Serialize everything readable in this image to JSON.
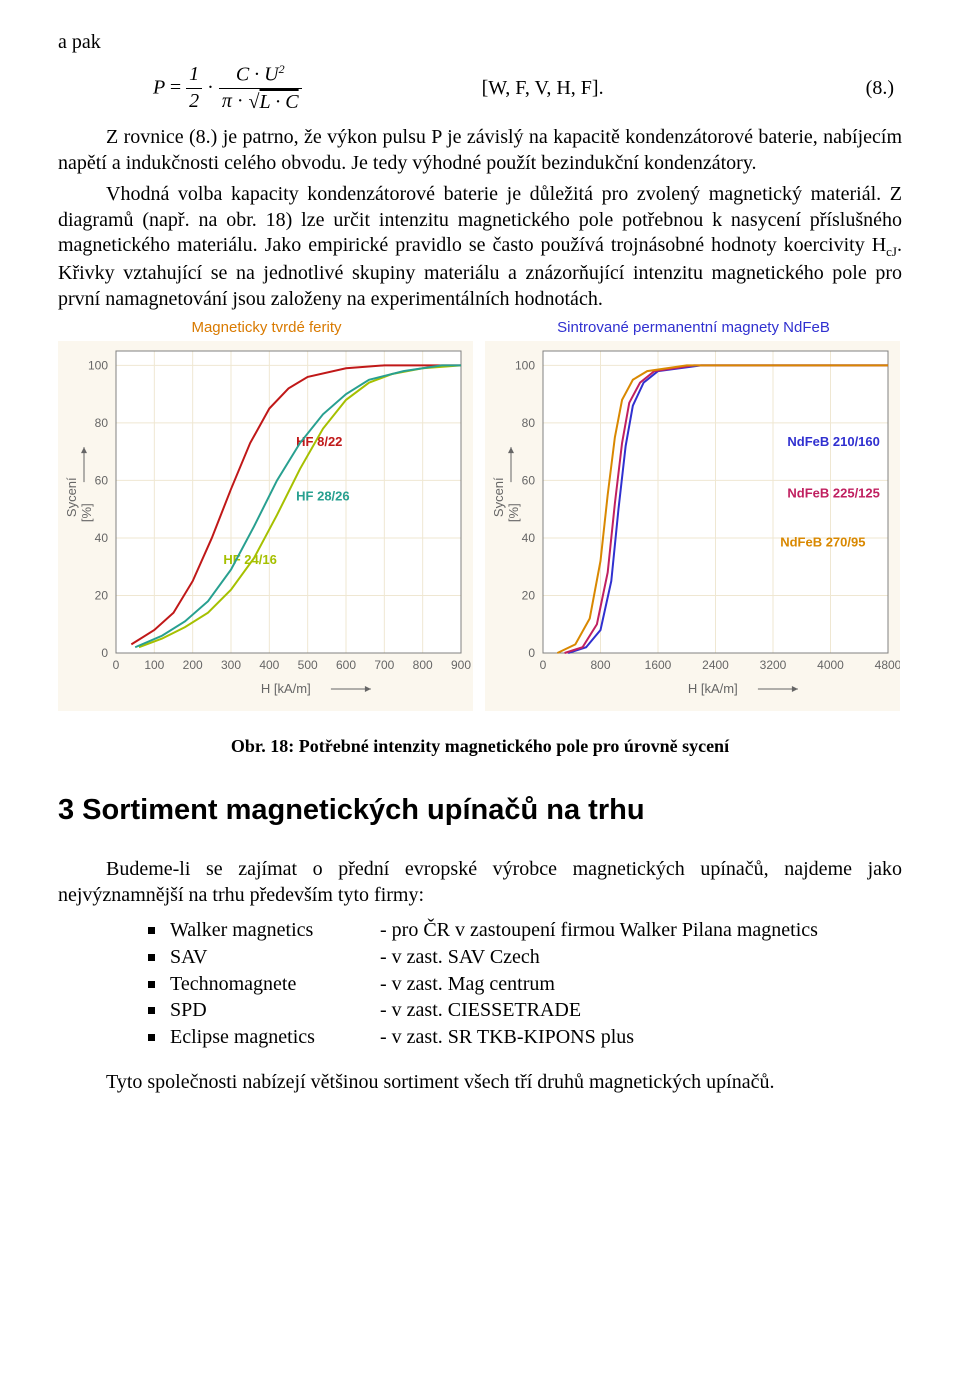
{
  "intro": {
    "apak": "a pak"
  },
  "formula": {
    "lhs": "P",
    "half_num": "1",
    "half_den": "2",
    "rhs_num": "C · U",
    "rhs_exp": "2",
    "rhs_den_pi": "π",
    "rhs_den_sqrt": "L · C",
    "units": "[W, F, V, H, F].",
    "eqnum": "(8.)"
  },
  "para1": "Z rovnice (8.) je patrno, že výkon pulsu P je závislý na kapacitě kondenzátorové baterie, nabíjecím napětí a indukčnosti celého obvodu. Je tedy výhodné použít bezindukční kondenzátory.",
  "para2_a": "Vhodná volba kapacity kondenzátorové baterie je důležitá pro zvolený magnetický materiál. Z diagramů (např. na obr. 18) lze určit intenzitu magnetického pole potřebnou k nasycení příslušného magnetického materiálu. Jako empirické pravidlo se často používá trojnásobné hodnoty koercivity H",
  "para2_sub": "cJ",
  "para2_b": ". Křivky vztahující se na jednotlivé skupiny materiálu a znázorňující intenzitu magnetického pole pro první namagnetování jsou založeny na experimentálních hodnotách.",
  "chart_left": {
    "title": "Magneticky tvrdé ferity",
    "title_color": "#d97a00",
    "bg": "#fbf7ee",
    "plot_bg": "#ffffff",
    "grid_color": "#efe7d2",
    "axis_color": "#808080",
    "label_color": "#666666",
    "ylabel_a": "Sycení",
    "ylabel_b": "[%]",
    "xlabel": "H [kA/m]",
    "xticks": [
      0,
      100,
      200,
      300,
      400,
      500,
      600,
      700,
      800,
      900
    ],
    "yticks": [
      0,
      20,
      40,
      60,
      80,
      100
    ],
    "xlim": [
      0,
      900
    ],
    "ylim": [
      0,
      105
    ],
    "series": [
      {
        "label": "HF 8/22",
        "color": "#c01818",
        "label_xy": [
          470,
          72
        ],
        "pts": [
          [
            40,
            3
          ],
          [
            100,
            8
          ],
          [
            150,
            14
          ],
          [
            200,
            25
          ],
          [
            250,
            40
          ],
          [
            300,
            57
          ],
          [
            350,
            73
          ],
          [
            400,
            85
          ],
          [
            450,
            92
          ],
          [
            500,
            96
          ],
          [
            600,
            99
          ],
          [
            700,
            100
          ],
          [
            800,
            100
          ],
          [
            900,
            100
          ]
        ]
      },
      {
        "label": "HF 24/16",
        "color": "#a6c000",
        "label_xy": [
          280,
          31
        ],
        "pts": [
          [
            60,
            2
          ],
          [
            120,
            5
          ],
          [
            180,
            9
          ],
          [
            240,
            14
          ],
          [
            300,
            22
          ],
          [
            360,
            33
          ],
          [
            420,
            48
          ],
          [
            480,
            64
          ],
          [
            540,
            78
          ],
          [
            600,
            88
          ],
          [
            660,
            94
          ],
          [
            720,
            97
          ],
          [
            800,
            99
          ],
          [
            900,
            100
          ]
        ]
      },
      {
        "label": "HF 28/26",
        "color": "#28a090",
        "label_xy": [
          470,
          53
        ],
        "pts": [
          [
            50,
            2
          ],
          [
            120,
            6
          ],
          [
            180,
            11
          ],
          [
            240,
            18
          ],
          [
            300,
            29
          ],
          [
            360,
            44
          ],
          [
            420,
            60
          ],
          [
            480,
            73
          ],
          [
            540,
            83
          ],
          [
            600,
            90
          ],
          [
            660,
            95
          ],
          [
            750,
            98
          ],
          [
            850,
            100
          ],
          [
            900,
            100
          ]
        ]
      }
    ]
  },
  "chart_right": {
    "title": "Sintrované permanentní magnety NdFeB",
    "title_color": "#3030d0",
    "bg": "#fbf7ee",
    "plot_bg": "#ffffff",
    "grid_color": "#efe7d2",
    "axis_color": "#808080",
    "label_color": "#666666",
    "ylabel_a": "Sycení",
    "ylabel_b": "[%]",
    "xlabel": "H [kA/m]",
    "xticks": [
      0,
      800,
      1600,
      2400,
      3200,
      4000,
      4800
    ],
    "yticks": [
      0,
      20,
      40,
      60,
      80,
      100
    ],
    "xlim": [
      0,
      4800
    ],
    "ylim": [
      0,
      105
    ],
    "series": [
      {
        "label": "NdFeB 210/160",
        "color": "#3030d0",
        "label_xy": [
          3400,
          72
        ],
        "pts": [
          [
            350,
            0
          ],
          [
            600,
            2
          ],
          [
            800,
            8
          ],
          [
            950,
            25
          ],
          [
            1050,
            50
          ],
          [
            1150,
            72
          ],
          [
            1250,
            86
          ],
          [
            1400,
            94
          ],
          [
            1600,
            98
          ],
          [
            2200,
            100
          ],
          [
            4800,
            100
          ]
        ]
      },
      {
        "label": "NdFeB 225/125",
        "color": "#c02060",
        "label_xy": [
          3400,
          54
        ],
        "pts": [
          [
            300,
            0
          ],
          [
            550,
            2
          ],
          [
            750,
            10
          ],
          [
            900,
            28
          ],
          [
            1000,
            52
          ],
          [
            1100,
            73
          ],
          [
            1200,
            87
          ],
          [
            1350,
            94
          ],
          [
            1550,
            98
          ],
          [
            2100,
            100
          ],
          [
            4800,
            100
          ]
        ]
      },
      {
        "label": "NdFeB 270/95",
        "color": "#d98800",
        "label_xy": [
          3300,
          37
        ],
        "pts": [
          [
            200,
            0
          ],
          [
            450,
            3
          ],
          [
            650,
            12
          ],
          [
            800,
            32
          ],
          [
            900,
            55
          ],
          [
            1000,
            75
          ],
          [
            1100,
            88
          ],
          [
            1250,
            95
          ],
          [
            1450,
            98
          ],
          [
            2000,
            100
          ],
          [
            4800,
            100
          ]
        ]
      }
    ]
  },
  "caption": "Obr. 18: Potřebné intenzity magnetického pole pro úrovně sycení",
  "heading": "3   Sortiment magnetických upínačů na trhu",
  "para3": "Budeme-li se zajímat o přední evropské výrobce magnetických upínačů, najdeme jako nejvýznamnější na trhu především tyto firmy:",
  "list": [
    {
      "a": "Walker magnetics",
      "b": "- pro ČR v zastoupení firmou Walker Pilana magnetics"
    },
    {
      "a": "SAV",
      "b": "- v zast. SAV Czech"
    },
    {
      "a": "Technomagnete",
      "b": "- v zast. Mag centrum"
    },
    {
      "a": "SPD",
      "b": "- v zast. CIESSETRADE"
    },
    {
      "a": "Eclipse magnetics",
      "b": "- v zast. SR TKB-KIPONS plus"
    }
  ],
  "para4": "Tyto společnosti nabízejí většinou sortiment všech tří druhů magnetických upínačů."
}
